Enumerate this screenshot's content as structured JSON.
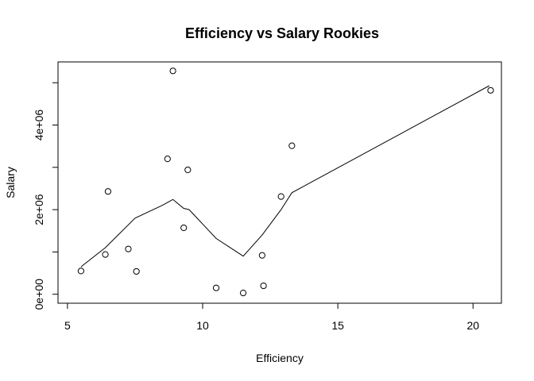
{
  "chart_data": {
    "type": "scatter",
    "title": "Efficiency vs Salary Rookies",
    "xlabel": "Efficiency",
    "ylabel": "Salary",
    "xlim": [
      5,
      21
    ],
    "ylim": [
      0,
      5300000
    ],
    "x_ticks": [
      5,
      10,
      15,
      20
    ],
    "x_tick_labels": [
      "5",
      "10",
      "15",
      "20"
    ],
    "y_ticks": [
      0,
      2000000,
      4000000
    ],
    "y_tick_labels": [
      "0e+00",
      "2e+06",
      "4e+06"
    ],
    "extra_y_tick_marks": [
      1000000,
      3000000,
      5000000
    ],
    "grid": false,
    "points": [
      {
        "x": 5.5,
        "y": 550000
      },
      {
        "x": 6.4,
        "y": 940000
      },
      {
        "x": 6.5,
        "y": 2430000
      },
      {
        "x": 7.25,
        "y": 1070000
      },
      {
        "x": 7.55,
        "y": 540000
      },
      {
        "x": 8.7,
        "y": 3200000
      },
      {
        "x": 8.9,
        "y": 5280000
      },
      {
        "x": 9.3,
        "y": 1570000
      },
      {
        "x": 9.45,
        "y": 2940000
      },
      {
        "x": 10.5,
        "y": 150000
      },
      {
        "x": 11.5,
        "y": 30000
      },
      {
        "x": 12.2,
        "y": 920000
      },
      {
        "x": 12.25,
        "y": 200000
      },
      {
        "x": 12.9,
        "y": 2310000
      },
      {
        "x": 13.3,
        "y": 3510000
      },
      {
        "x": 20.65,
        "y": 4820000
      }
    ],
    "fit_line": [
      {
        "x": 5.5,
        "y": 650000
      },
      {
        "x": 6.4,
        "y": 1100000
      },
      {
        "x": 7.5,
        "y": 1800000
      },
      {
        "x": 8.5,
        "y": 2100000
      },
      {
        "x": 8.9,
        "y": 2240000
      },
      {
        "x": 9.3,
        "y": 2030000
      },
      {
        "x": 9.5,
        "y": 2000000
      },
      {
        "x": 10.5,
        "y": 1320000
      },
      {
        "x": 11.5,
        "y": 900000
      },
      {
        "x": 12.2,
        "y": 1400000
      },
      {
        "x": 12.9,
        "y": 2000000
      },
      {
        "x": 13.3,
        "y": 2400000
      },
      {
        "x": 20.6,
        "y": 4930000
      }
    ]
  }
}
